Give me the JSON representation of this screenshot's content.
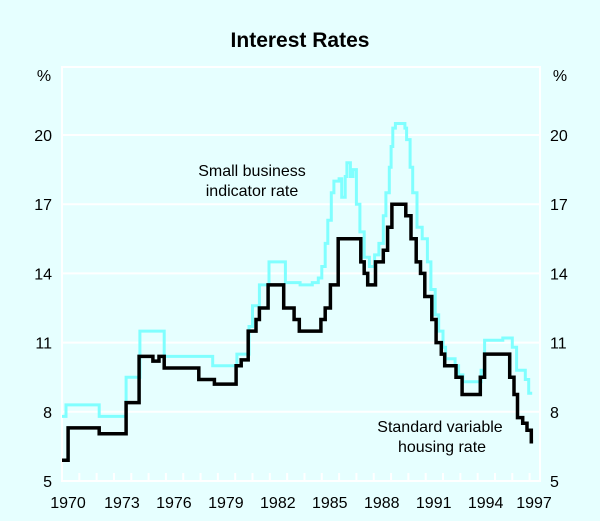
{
  "chart_data": {
    "type": "line",
    "title": "Interest Rates",
    "ylabel_left": "%",
    "ylabel_right": "%",
    "ylim": [
      5,
      23
    ],
    "xlim": [
      1970,
      1997.6
    ],
    "yticks": [
      5,
      8,
      11,
      14,
      17,
      20
    ],
    "xticks": [
      1970,
      1973,
      1976,
      1979,
      1982,
      1985,
      1988,
      1991,
      1994,
      1997
    ],
    "grid": true,
    "series": [
      {
        "name": "Small business indicator rate",
        "label_lines": [
          "Small business",
          "indicator rate"
        ],
        "color": "#80ffff",
        "step": true,
        "points": [
          [
            1970.0,
            7.8
          ],
          [
            1970.23,
            8.3
          ],
          [
            1972.15,
            7.8
          ],
          [
            1973.7,
            9.5
          ],
          [
            1974.5,
            11.5
          ],
          [
            1975.9,
            10.4
          ],
          [
            1978.7,
            10.0
          ],
          [
            1980.1,
            10.5
          ],
          [
            1980.8,
            11.7
          ],
          [
            1981.0,
            12.6
          ],
          [
            1981.4,
            13.5
          ],
          [
            1981.95,
            14.5
          ],
          [
            1982.9,
            13.6
          ],
          [
            1983.75,
            13.5
          ],
          [
            1984.45,
            13.6
          ],
          [
            1984.8,
            13.8
          ],
          [
            1985.0,
            14.3
          ],
          [
            1985.2,
            15.3
          ],
          [
            1985.35,
            16.3
          ],
          [
            1985.55,
            17.5
          ],
          [
            1985.7,
            18.0
          ],
          [
            1986.0,
            18.1
          ],
          [
            1986.15,
            17.3
          ],
          [
            1986.35,
            18.2
          ],
          [
            1986.45,
            18.8
          ],
          [
            1986.65,
            18.2
          ],
          [
            1986.8,
            18.5
          ],
          [
            1987.0,
            17.0
          ],
          [
            1987.2,
            15.8
          ],
          [
            1987.45,
            14.7
          ],
          [
            1987.75,
            14.3
          ],
          [
            1988.05,
            14.8
          ],
          [
            1988.3,
            15.3
          ],
          [
            1988.55,
            16.5
          ],
          [
            1988.7,
            17.5
          ],
          [
            1988.9,
            18.6
          ],
          [
            1989.0,
            19.5
          ],
          [
            1989.1,
            20.3
          ],
          [
            1989.25,
            20.5
          ],
          [
            1989.8,
            20.3
          ],
          [
            1989.9,
            19.8
          ],
          [
            1990.1,
            18.6
          ],
          [
            1990.25,
            17.5
          ],
          [
            1990.5,
            16.0
          ],
          [
            1990.8,
            15.5
          ],
          [
            1991.1,
            14.5
          ],
          [
            1991.3,
            13.3
          ],
          [
            1991.55,
            12.2
          ],
          [
            1991.75,
            11.5
          ],
          [
            1992.0,
            10.8
          ],
          [
            1992.15,
            10.3
          ],
          [
            1992.7,
            10.0
          ],
          [
            1992.9,
            9.6
          ],
          [
            1993.15,
            9.3
          ],
          [
            1994.2,
            9.8
          ],
          [
            1994.4,
            11.1
          ],
          [
            1995.45,
            11.2
          ],
          [
            1996.0,
            10.8
          ],
          [
            1996.25,
            9.8
          ],
          [
            1996.75,
            9.4
          ],
          [
            1996.95,
            8.8
          ]
        ],
        "end_year": 1997.15
      },
      {
        "name": "Standard variable housing rate",
        "label_lines": [
          "Standard variable",
          "housing rate"
        ],
        "color": "#000000",
        "step": true,
        "points": [
          [
            1970.0,
            5.9
          ],
          [
            1970.35,
            7.3
          ],
          [
            1972.15,
            7.05
          ],
          [
            1973.7,
            8.4
          ],
          [
            1974.45,
            10.4
          ],
          [
            1975.25,
            10.2
          ],
          [
            1975.6,
            10.4
          ],
          [
            1975.9,
            9.9
          ],
          [
            1977.9,
            9.4
          ],
          [
            1978.8,
            9.2
          ],
          [
            1980.05,
            10.0
          ],
          [
            1980.35,
            10.25
          ],
          [
            1980.75,
            11.5
          ],
          [
            1981.2,
            12.0
          ],
          [
            1981.4,
            12.5
          ],
          [
            1981.9,
            13.5
          ],
          [
            1982.8,
            12.5
          ],
          [
            1983.4,
            12.0
          ],
          [
            1983.7,
            11.5
          ],
          [
            1984.95,
            12.0
          ],
          [
            1985.2,
            12.5
          ],
          [
            1985.5,
            13.5
          ],
          [
            1985.95,
            15.5
          ],
          [
            1987.25,
            14.5
          ],
          [
            1987.45,
            14.0
          ],
          [
            1987.65,
            13.5
          ],
          [
            1988.1,
            14.5
          ],
          [
            1988.55,
            15.0
          ],
          [
            1988.8,
            16.0
          ],
          [
            1989.05,
            17.0
          ],
          [
            1989.85,
            16.5
          ],
          [
            1990.15,
            15.5
          ],
          [
            1990.45,
            14.5
          ],
          [
            1990.7,
            14.0
          ],
          [
            1990.95,
            13.0
          ],
          [
            1991.35,
            12.0
          ],
          [
            1991.6,
            11.0
          ],
          [
            1991.9,
            10.5
          ],
          [
            1992.1,
            10.0
          ],
          [
            1992.75,
            9.5
          ],
          [
            1993.1,
            8.75
          ],
          [
            1994.15,
            9.5
          ],
          [
            1994.4,
            10.5
          ],
          [
            1995.85,
            9.5
          ],
          [
            1996.1,
            8.75
          ],
          [
            1996.3,
            7.75
          ],
          [
            1996.6,
            7.5
          ],
          [
            1996.85,
            7.2
          ],
          [
            1997.1,
            6.7
          ]
        ],
        "end_year": 1997.2
      }
    ]
  }
}
